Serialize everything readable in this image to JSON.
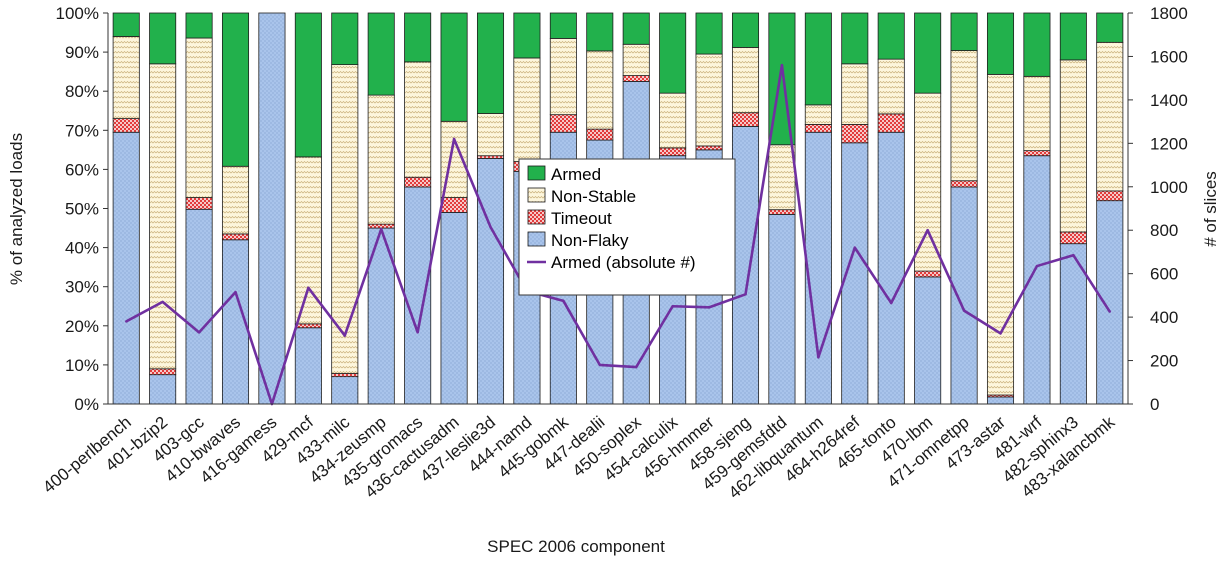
{
  "chart_data": {
    "type": "bar",
    "stacked": true,
    "categories": [
      "400-perlbench",
      "401-bzip2",
      "403-gcc",
      "410-bwaves",
      "416-gamess",
      "429-mcf",
      "433-milc",
      "434-zeusmp",
      "435-gromacs",
      "436-cactusadm",
      "437-leslie3d",
      "444-namd",
      "445-gobmk",
      "447-dealii",
      "450-soplex",
      "454-calculix",
      "456-hmmer",
      "458-sjeng",
      "459-gemsfdtd",
      "462-libquantum",
      "464-h264ref",
      "465-tonto",
      "470-lbm",
      "471-omnetpp",
      "473-astar",
      "481-wrf",
      "482-sphinx3",
      "483-xalancbmk"
    ],
    "series": [
      {
        "name": "Non-Flaky",
        "color": "#a9c4eb",
        "values": [
          69.5,
          7.5,
          49.8,
          42,
          100,
          19.5,
          7,
          45,
          55.5,
          49,
          62.8,
          59.5,
          69.5,
          67.5,
          82.5,
          63.5,
          65,
          71,
          48.5,
          69.5,
          66.8,
          69.5,
          32.5,
          55.5,
          1.8,
          63.5,
          41,
          52
        ]
      },
      {
        "name": "Timeout",
        "color": "#f4c4c4",
        "values": [
          3.5,
          1.5,
          3,
          1.5,
          0,
          1,
          0.8,
          1,
          2.5,
          3.8,
          0.7,
          2.5,
          4.5,
          2.8,
          1.5,
          2,
          1,
          3.5,
          1.2,
          2,
          4.7,
          4.7,
          1.5,
          1.6,
          0.5,
          1.3,
          3,
          2.5
        ]
      },
      {
        "name": "Non-Stable",
        "color": "#fdf6dc",
        "values": [
          21,
          78,
          40.8,
          17.3,
          0,
          42.7,
          79,
          33,
          29.5,
          19.5,
          10.8,
          26.5,
          19.5,
          20,
          8,
          14,
          23.5,
          16.7,
          16.6,
          5,
          15.5,
          14,
          45.5,
          33.3,
          82,
          19,
          44,
          38
        ]
      },
      {
        "name": "Armed",
        "color": "#22b14c",
        "values": [
          6,
          13,
          6.4,
          39.2,
          0,
          36.8,
          13.2,
          21,
          12.5,
          27.7,
          25.7,
          11.5,
          6.5,
          9.7,
          8,
          20.5,
          10.5,
          8.8,
          33.7,
          23.5,
          13,
          11.8,
          20.5,
          9.6,
          15.7,
          16.2,
          12,
          7.5
        ]
      }
    ],
    "line_series": {
      "name": "Armed (absolute #)",
      "axis": "right",
      "color": "#7030a0",
      "values": [
        380,
        470,
        330,
        515,
        0,
        535,
        315,
        805,
        330,
        1220,
        815,
        520,
        475,
        180,
        170,
        450,
        445,
        505,
        1560,
        215,
        720,
        465,
        800,
        430,
        325,
        635,
        685,
        425
      ]
    },
    "title": "",
    "xlabel": "SPEC 2006 component",
    "ylabel": "% of analyzed loads",
    "y2label": "# of slices",
    "ylim": [
      0,
      100
    ],
    "y2lim": [
      0,
      1800
    ],
    "yticks": [
      "0%",
      "10%",
      "20%",
      "30%",
      "40%",
      "50%",
      "60%",
      "70%",
      "80%",
      "90%",
      "100%"
    ],
    "y2ticks": [
      "0",
      "200",
      "400",
      "600",
      "800",
      "1000",
      "1200",
      "1400",
      "1600",
      "1800"
    ],
    "legend": {
      "placement": "center",
      "entries": [
        "Armed",
        "Non-Stable",
        "Timeout",
        "Non-Flaky",
        "Armed (absolute #)"
      ]
    }
  }
}
